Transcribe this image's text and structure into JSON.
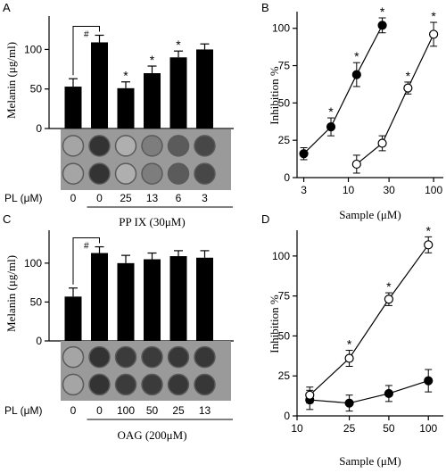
{
  "chart_data": [
    {
      "panel": "A",
      "type": "bar",
      "ylabel": "Melanin (μg/ml)",
      "ylim": [
        0,
        140
      ],
      "yticks": [
        0,
        50,
        100
      ],
      "categories": [
        "0",
        "0",
        "25",
        "13",
        "6",
        "3"
      ],
      "values": [
        53,
        109,
        51,
        70,
        90,
        100
      ],
      "errors": [
        10,
        9,
        8,
        9,
        8,
        7
      ],
      "stars": [
        false,
        false,
        true,
        true,
        true,
        false
      ],
      "bracket": {
        "from": 0,
        "to": 1,
        "label": "#"
      },
      "row_label": "PL (μM)",
      "group_label": "PP IX (30μM)",
      "well_darkness": [
        0.35,
        0.92,
        0.3,
        0.55,
        0.72,
        0.82
      ]
    },
    {
      "panel": "B",
      "type": "line",
      "xlabel": "Sample (μM)",
      "ylabel": "Inhibition %",
      "xscale": "log",
      "xlim": [
        2.5,
        130
      ],
      "xticks": [
        3,
        10,
        30,
        100
      ],
      "ylim": [
        0,
        110
      ],
      "yticks": [
        0,
        25,
        50,
        75,
        100
      ],
      "series": [
        {
          "marker": "filled",
          "x": [
            3,
            6.25,
            12.5,
            25
          ],
          "y": [
            16,
            34,
            69,
            102
          ],
          "err": [
            4,
            6,
            8,
            5
          ],
          "stars": [
            false,
            true,
            true,
            true
          ]
        },
        {
          "marker": "open",
          "x": [
            12.5,
            25,
            50,
            100
          ],
          "y": [
            9,
            23,
            60,
            96
          ],
          "err": [
            6,
            5,
            4,
            8
          ],
          "stars": [
            false,
            false,
            true,
            true
          ]
        }
      ]
    },
    {
      "panel": "C",
      "type": "bar",
      "ylabel": "Melanin (μg/ml)",
      "ylim": [
        0,
        140
      ],
      "yticks": [
        0,
        50,
        100
      ],
      "categories": [
        "0",
        "0",
        "100",
        "50",
        "25",
        "13"
      ],
      "values": [
        57,
        113,
        100,
        105,
        109,
        107
      ],
      "errors": [
        11,
        8,
        10,
        8,
        7,
        9
      ],
      "stars": [
        false,
        false,
        false,
        false,
        false,
        false
      ],
      "bracket": {
        "from": 0,
        "to": 1,
        "label": "#"
      },
      "row_label": "PL (μM)",
      "group_label": "OAG (200μM)",
      "well_darkness": [
        0.35,
        0.92,
        0.88,
        0.88,
        0.9,
        0.9
      ]
    },
    {
      "panel": "D",
      "type": "line",
      "xlabel": "Sample (μM)",
      "ylabel": "Inhibition %",
      "xscale": "log",
      "xlim": [
        10,
        130
      ],
      "xticks": [
        10,
        25,
        50,
        100
      ],
      "ylim": [
        0,
        115
      ],
      "yticks": [
        0,
        25,
        50,
        75,
        100
      ],
      "series": [
        {
          "marker": "filled",
          "x": [
            12.5,
            25,
            50,
            100
          ],
          "y": [
            10,
            8,
            14,
            22
          ],
          "err": [
            6,
            5,
            5,
            7
          ],
          "stars": [
            false,
            false,
            false,
            false
          ]
        },
        {
          "marker": "open",
          "x": [
            12.5,
            25,
            50,
            100
          ],
          "y": [
            13,
            36,
            73,
            107
          ],
          "err": [
            5,
            5,
            4,
            5
          ],
          "stars": [
            false,
            true,
            true,
            true
          ]
        }
      ]
    }
  ]
}
